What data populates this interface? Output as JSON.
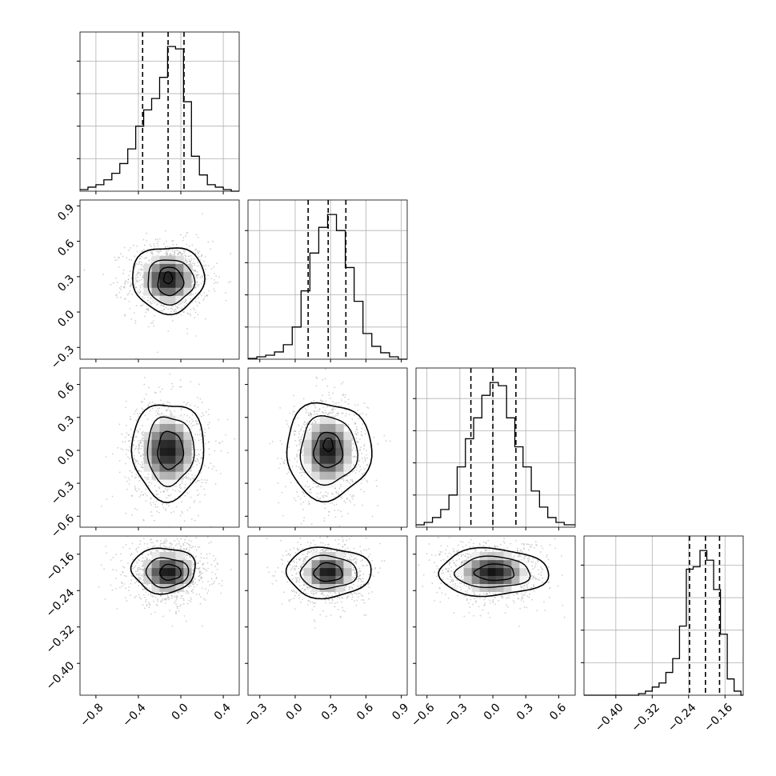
{
  "chart_data": {
    "type": "corner",
    "parameters": 4,
    "grid": true,
    "colors": {
      "line": "#000000",
      "grid": "#b0b0b0",
      "quantile": "#000000",
      "points": "#a9a9a9",
      "density": "#000000"
    },
    "histograms": [
      {
        "param": 0,
        "range": [
          -0.95,
          0.55
        ],
        "bins": [
          {
            "x0": -0.95,
            "x1": -0.875,
            "count": 2
          },
          {
            "x0": -0.875,
            "x1": -0.8,
            "count": 5
          },
          {
            "x0": -0.8,
            "x1": -0.725,
            "count": 8
          },
          {
            "x0": -0.725,
            "x1": -0.65,
            "count": 14
          },
          {
            "x0": -0.65,
            "x1": -0.575,
            "count": 22
          },
          {
            "x0": -0.575,
            "x1": -0.5,
            "count": 34
          },
          {
            "x0": -0.5,
            "x1": -0.425,
            "count": 52
          },
          {
            "x0": -0.425,
            "x1": -0.35,
            "count": 80
          },
          {
            "x0": -0.35,
            "x1": -0.275,
            "count": 100
          },
          {
            "x0": -0.275,
            "x1": -0.2,
            "count": 114
          },
          {
            "x0": -0.2,
            "x1": -0.125,
            "count": 140
          },
          {
            "x0": -0.125,
            "x1": -0.05,
            "count": 178
          },
          {
            "x0": -0.05,
            "x1": 0.025,
            "count": 175
          },
          {
            "x0": 0.025,
            "x1": 0.1,
            "count": 110
          },
          {
            "x0": 0.1,
            "x1": 0.175,
            "count": 43
          },
          {
            "x0": 0.175,
            "x1": 0.25,
            "count": 20
          },
          {
            "x0": 0.25,
            "x1": 0.325,
            "count": 8
          },
          {
            "x0": 0.325,
            "x1": 0.4,
            "count": 5
          },
          {
            "x0": 0.4,
            "x1": 0.475,
            "count": 2
          },
          {
            "x0": 0.475,
            "x1": 0.55,
            "count": 0
          }
        ],
        "quantiles": [
          -0.36,
          -0.12,
          0.03
        ]
      },
      {
        "param": 1,
        "range": [
          -0.4,
          0.95
        ],
        "bins": [
          {
            "x0": -0.4,
            "x1": -0.325,
            "count": 1
          },
          {
            "x0": -0.325,
            "x1": -0.25,
            "count": 3
          },
          {
            "x0": -0.25,
            "x1": -0.175,
            "count": 5
          },
          {
            "x0": -0.175,
            "x1": -0.1,
            "count": 9
          },
          {
            "x0": -0.1,
            "x1": -0.025,
            "count": 18
          },
          {
            "x0": -0.025,
            "x1": 0.05,
            "count": 40
          },
          {
            "x0": 0.05,
            "x1": 0.125,
            "count": 85
          },
          {
            "x0": 0.125,
            "x1": 0.2,
            "count": 132
          },
          {
            "x0": 0.2,
            "x1": 0.275,
            "count": 164
          },
          {
            "x0": 0.275,
            "x1": 0.35,
            "count": 180
          },
          {
            "x0": 0.35,
            "x1": 0.425,
            "count": 160
          },
          {
            "x0": 0.425,
            "x1": 0.5,
            "count": 114
          },
          {
            "x0": 0.5,
            "x1": 0.575,
            "count": 72
          },
          {
            "x0": 0.575,
            "x1": 0.65,
            "count": 32
          },
          {
            "x0": 0.65,
            "x1": 0.725,
            "count": 16
          },
          {
            "x0": 0.725,
            "x1": 0.8,
            "count": 8
          },
          {
            "x0": 0.8,
            "x1": 0.875,
            "count": 3
          },
          {
            "x0": 0.875,
            "x1": 0.95,
            "count": 0
          }
        ],
        "quantiles": [
          0.11,
          0.28,
          0.43
        ]
      },
      {
        "param": 2,
        "range": [
          -0.7,
          0.75
        ],
        "bins": [
          {
            "x0": -0.7,
            "x1": -0.625,
            "count": 3
          },
          {
            "x0": -0.625,
            "x1": -0.55,
            "count": 6
          },
          {
            "x0": -0.55,
            "x1": -0.475,
            "count": 12
          },
          {
            "x0": -0.475,
            "x1": -0.4,
            "count": 22
          },
          {
            "x0": -0.4,
            "x1": -0.325,
            "count": 40
          },
          {
            "x0": -0.325,
            "x1": -0.25,
            "count": 75
          },
          {
            "x0": -0.25,
            "x1": -0.175,
            "count": 110
          },
          {
            "x0": -0.175,
            "x1": -0.1,
            "count": 136
          },
          {
            "x0": -0.1,
            "x1": -0.025,
            "count": 164
          },
          {
            "x0": -0.025,
            "x1": 0.05,
            "count": 180
          },
          {
            "x0": 0.05,
            "x1": 0.125,
            "count": 176
          },
          {
            "x0": 0.125,
            "x1": 0.2,
            "count": 136
          },
          {
            "x0": 0.2,
            "x1": 0.275,
            "count": 100
          },
          {
            "x0": 0.275,
            "x1": 0.35,
            "count": 75
          },
          {
            "x0": 0.35,
            "x1": 0.425,
            "count": 45
          },
          {
            "x0": 0.425,
            "x1": 0.5,
            "count": 25
          },
          {
            "x0": 0.5,
            "x1": 0.575,
            "count": 12
          },
          {
            "x0": 0.575,
            "x1": 0.65,
            "count": 6
          },
          {
            "x0": 0.65,
            "x1": 0.75,
            "count": 3
          }
        ],
        "quantiles": [
          -0.2,
          0.0,
          0.21
        ]
      },
      {
        "param": 3,
        "range": [
          -0.47,
          -0.12
        ],
        "bins": [
          {
            "x0": -0.47,
            "x1": -0.44,
            "count": 0
          },
          {
            "x0": -0.44,
            "x1": -0.41,
            "count": 0
          },
          {
            "x0": -0.41,
            "x1": -0.38,
            "count": 0
          },
          {
            "x0": -0.38,
            "x1": -0.35,
            "count": 0
          },
          {
            "x0": -0.35,
            "x1": -0.335,
            "count": 2
          },
          {
            "x0": -0.335,
            "x1": -0.32,
            "count": 5
          },
          {
            "x0": -0.32,
            "x1": -0.305,
            "count": 10
          },
          {
            "x0": -0.305,
            "x1": -0.29,
            "count": 15
          },
          {
            "x0": -0.29,
            "x1": -0.275,
            "count": 28
          },
          {
            "x0": -0.275,
            "x1": -0.26,
            "count": 45
          },
          {
            "x0": -0.26,
            "x1": -0.245,
            "count": 85
          },
          {
            "x0": -0.245,
            "x1": -0.23,
            "count": 155
          },
          {
            "x0": -0.23,
            "x1": -0.215,
            "count": 158
          },
          {
            "x0": -0.215,
            "x1": -0.2,
            "count": 178
          },
          {
            "x0": -0.2,
            "x1": -0.185,
            "count": 166
          },
          {
            "x0": -0.185,
            "x1": -0.17,
            "count": 130
          },
          {
            "x0": -0.17,
            "x1": -0.155,
            "count": 75
          },
          {
            "x0": -0.155,
            "x1": -0.14,
            "count": 20
          },
          {
            "x0": -0.14,
            "x1": -0.125,
            "count": 5
          },
          {
            "x0": -0.125,
            "x1": -0.12,
            "count": 0
          }
        ],
        "quantiles": [
          -0.238,
          -0.203,
          -0.172
        ]
      }
    ],
    "axes": [
      {
        "param": 0,
        "range": [
          -0.95,
          0.55
        ],
        "ticks": [
          -0.8,
          -0.4,
          0.0,
          0.4
        ],
        "tick_labels": [
          "−0.8",
          "−0.4",
          "0.0",
          "0.4"
        ]
      },
      {
        "param": 1,
        "range": [
          -0.4,
          0.95
        ],
        "ticks": [
          -0.3,
          0.0,
          0.3,
          0.6,
          0.9
        ],
        "tick_labels": [
          "−0.3",
          "0.0",
          "0.3",
          "0.6",
          "0.9"
        ]
      },
      {
        "param": 2,
        "range": [
          -0.7,
          0.75
        ],
        "ticks": [
          -0.6,
          -0.3,
          0.0,
          0.3,
          0.6
        ],
        "tick_labels": [
          "−0.6",
          "−0.3",
          "0.0",
          "0.3",
          "0.6"
        ]
      },
      {
        "param": 3,
        "range": [
          -0.47,
          -0.12
        ],
        "ticks": [
          -0.4,
          -0.32,
          -0.24,
          -0.16
        ],
        "tick_labels": [
          "−0.40",
          "−0.32",
          "−0.24",
          "−0.16"
        ]
      }
    ],
    "pairs": [
      {
        "x_param": 0,
        "y_param": 1,
        "center": [
          -0.12,
          0.28
        ],
        "sigma": [
          0.17,
          0.14
        ],
        "levels": [
          [
            -0.12,
            0.28,
            0.34,
            0.28
          ],
          [
            -0.1,
            0.26,
            0.22,
            0.19
          ],
          [
            -0.1,
            0.26,
            0.12,
            0.12
          ],
          [
            -0.12,
            0.29,
            0.04,
            0.05
          ]
        ]
      },
      {
        "x_param": 0,
        "y_param": 2,
        "center": [
          -0.12,
          0.0
        ],
        "sigma": [
          0.17,
          0.21
        ],
        "levels": [
          [
            -0.12,
            0.0,
            0.34,
            0.44
          ],
          [
            -0.1,
            0.0,
            0.22,
            0.31
          ],
          [
            -0.1,
            0.0,
            0.12,
            0.17
          ]
        ]
      },
      {
        "x_param": 0,
        "y_param": 3,
        "center": [
          -0.12,
          -0.2
        ],
        "sigma": [
          0.17,
          0.03
        ],
        "levels": [
          [
            -0.16,
            -0.195,
            0.3,
            0.05
          ],
          [
            -0.13,
            -0.2,
            0.2,
            0.032
          ],
          [
            -0.1,
            -0.2,
            0.1,
            0.017
          ]
        ]
      },
      {
        "x_param": 1,
        "y_param": 2,
        "center": [
          0.28,
          0.0
        ],
        "sigma": [
          0.14,
          0.21
        ],
        "levels": [
          [
            0.28,
            0.0,
            0.36,
            0.44
          ],
          [
            0.28,
            0.0,
            0.24,
            0.31
          ],
          [
            0.28,
            0.0,
            0.12,
            0.16
          ],
          [
            0.28,
            0.05,
            0.04,
            0.06
          ]
        ]
      },
      {
        "x_param": 1,
        "y_param": 3,
        "center": [
          0.28,
          -0.2
        ],
        "sigma": [
          0.14,
          0.03
        ],
        "levels": [
          [
            0.28,
            -0.2,
            0.36,
            0.055
          ],
          [
            0.28,
            -0.2,
            0.24,
            0.036
          ],
          [
            0.28,
            -0.2,
            0.12,
            0.02
          ]
        ]
      },
      {
        "x_param": 2,
        "y_param": 3,
        "center": [
          0.0,
          -0.2
        ],
        "sigma": [
          0.21,
          0.03
        ],
        "levels": [
          [
            0.0,
            -0.2,
            0.5,
            0.052
          ],
          [
            0.0,
            -0.2,
            0.34,
            0.034
          ],
          [
            0.02,
            -0.2,
            0.18,
            0.018
          ]
        ]
      }
    ]
  }
}
